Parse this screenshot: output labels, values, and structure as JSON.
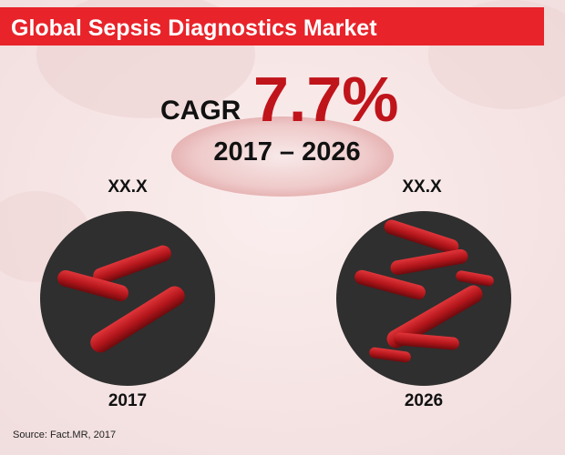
{
  "header": {
    "title": "Global Sepsis Diagnostics Market"
  },
  "cagr": {
    "label": "CAGR",
    "value": "7.7%",
    "period": "2017 – 2026"
  },
  "markets": [
    {
      "value": "XX.X",
      "year": "2017"
    },
    {
      "value": "XX.X",
      "year": "2026"
    }
  ],
  "source": "Source: Fact.MR, 2017"
}
